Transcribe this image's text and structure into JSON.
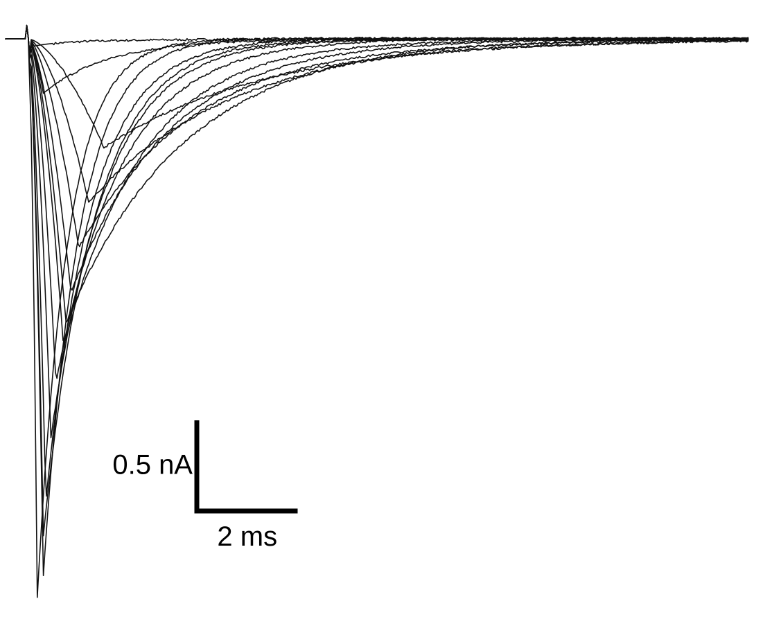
{
  "chart_data": {
    "type": "line",
    "title": "",
    "xlabel": "",
    "ylabel": "",
    "units": {
      "x": "ms",
      "y": "nA"
    },
    "xlim": [
      -0.45,
      14.3
    ],
    "ylim": [
      -3.2,
      0.1
    ],
    "baseline_nA": 0,
    "series": [
      {
        "peak_nA": -0.04,
        "peak_time_ms": 0.1,
        "decay_ms": 0.8
      },
      {
        "peak_nA": -0.3,
        "peak_time_ms": 0.3,
        "decay_ms": 1.3
      },
      {
        "peak_nA": -1.57,
        "peak_time_ms": 0.75,
        "decay_ms": 2.3
      },
      {
        "peak_nA": -2.74,
        "peak_time_ms": 0.3,
        "decay_ms": 1.0
      },
      {
        "peak_nA": -3.08,
        "peak_time_ms": 0.18,
        "decay_ms": 0.6
      },
      {
        "peak_nA": -2.96,
        "peak_time_ms": 0.3,
        "decay_ms": 0.7
      },
      {
        "peak_nA": -2.55,
        "peak_time_ms": 0.35,
        "decay_ms": 0.9
      },
      {
        "peak_nA": -2.2,
        "peak_time_ms": 0.45,
        "decay_ms": 1.1
      },
      {
        "peak_nA": -1.9,
        "peak_time_ms": 0.55,
        "decay_ms": 1.3
      },
      {
        "peak_nA": -1.7,
        "peak_time_ms": 0.7,
        "decay_ms": 1.6
      },
      {
        "peak_nA": -1.4,
        "peak_time_ms": 0.85,
        "decay_ms": 1.9
      },
      {
        "peak_nA": -1.15,
        "peak_time_ms": 1.0,
        "decay_ms": 2.3
      },
      {
        "peak_nA": -0.9,
        "peak_time_ms": 1.2,
        "decay_ms": 2.8
      },
      {
        "peak_nA": -0.6,
        "peak_time_ms": 1.5,
        "decay_ms": 3.2
      }
    ],
    "scale_bar": {
      "current_nA": 0.5,
      "time_ms": 2,
      "current_label": "0.5 nA",
      "time_label": "2 ms"
    },
    "grid": false,
    "legend": "none"
  }
}
